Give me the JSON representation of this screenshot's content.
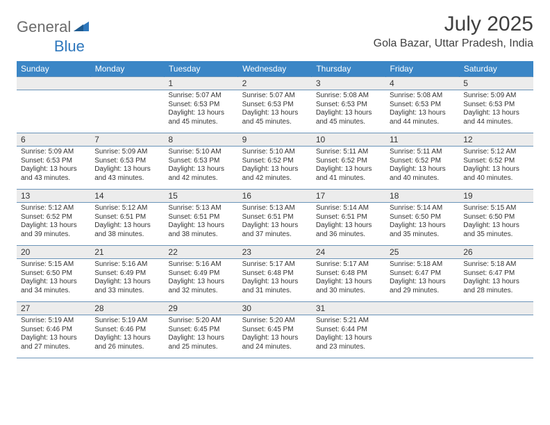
{
  "brand": {
    "text1": "General",
    "text2": "Blue"
  },
  "title": "July 2025",
  "location": "Gola Bazar, Uttar Pradesh, India",
  "colors": {
    "header_bg": "#3b86c6",
    "header_text": "#ffffff",
    "border": "#6a93b8",
    "daynum_bg": "#ececec",
    "text": "#333333",
    "page_bg": "#ffffff",
    "logo_gray": "#6b6b6b",
    "logo_blue": "#2f78bd"
  },
  "day_headers": [
    "Sunday",
    "Monday",
    "Tuesday",
    "Wednesday",
    "Thursday",
    "Friday",
    "Saturday"
  ],
  "weeks": [
    [
      null,
      null,
      {
        "n": "1",
        "sr": "Sunrise: 5:07 AM",
        "ss": "Sunset: 6:53 PM",
        "dl": "Daylight: 13 hours and 45 minutes."
      },
      {
        "n": "2",
        "sr": "Sunrise: 5:07 AM",
        "ss": "Sunset: 6:53 PM",
        "dl": "Daylight: 13 hours and 45 minutes."
      },
      {
        "n": "3",
        "sr": "Sunrise: 5:08 AM",
        "ss": "Sunset: 6:53 PM",
        "dl": "Daylight: 13 hours and 45 minutes."
      },
      {
        "n": "4",
        "sr": "Sunrise: 5:08 AM",
        "ss": "Sunset: 6:53 PM",
        "dl": "Daylight: 13 hours and 44 minutes."
      },
      {
        "n": "5",
        "sr": "Sunrise: 5:09 AM",
        "ss": "Sunset: 6:53 PM",
        "dl": "Daylight: 13 hours and 44 minutes."
      }
    ],
    [
      {
        "n": "6",
        "sr": "Sunrise: 5:09 AM",
        "ss": "Sunset: 6:53 PM",
        "dl": "Daylight: 13 hours and 43 minutes."
      },
      {
        "n": "7",
        "sr": "Sunrise: 5:09 AM",
        "ss": "Sunset: 6:53 PM",
        "dl": "Daylight: 13 hours and 43 minutes."
      },
      {
        "n": "8",
        "sr": "Sunrise: 5:10 AM",
        "ss": "Sunset: 6:53 PM",
        "dl": "Daylight: 13 hours and 42 minutes."
      },
      {
        "n": "9",
        "sr": "Sunrise: 5:10 AM",
        "ss": "Sunset: 6:52 PM",
        "dl": "Daylight: 13 hours and 42 minutes."
      },
      {
        "n": "10",
        "sr": "Sunrise: 5:11 AM",
        "ss": "Sunset: 6:52 PM",
        "dl": "Daylight: 13 hours and 41 minutes."
      },
      {
        "n": "11",
        "sr": "Sunrise: 5:11 AM",
        "ss": "Sunset: 6:52 PM",
        "dl": "Daylight: 13 hours and 40 minutes."
      },
      {
        "n": "12",
        "sr": "Sunrise: 5:12 AM",
        "ss": "Sunset: 6:52 PM",
        "dl": "Daylight: 13 hours and 40 minutes."
      }
    ],
    [
      {
        "n": "13",
        "sr": "Sunrise: 5:12 AM",
        "ss": "Sunset: 6:52 PM",
        "dl": "Daylight: 13 hours and 39 minutes."
      },
      {
        "n": "14",
        "sr": "Sunrise: 5:12 AM",
        "ss": "Sunset: 6:51 PM",
        "dl": "Daylight: 13 hours and 38 minutes."
      },
      {
        "n": "15",
        "sr": "Sunrise: 5:13 AM",
        "ss": "Sunset: 6:51 PM",
        "dl": "Daylight: 13 hours and 38 minutes."
      },
      {
        "n": "16",
        "sr": "Sunrise: 5:13 AM",
        "ss": "Sunset: 6:51 PM",
        "dl": "Daylight: 13 hours and 37 minutes."
      },
      {
        "n": "17",
        "sr": "Sunrise: 5:14 AM",
        "ss": "Sunset: 6:51 PM",
        "dl": "Daylight: 13 hours and 36 minutes."
      },
      {
        "n": "18",
        "sr": "Sunrise: 5:14 AM",
        "ss": "Sunset: 6:50 PM",
        "dl": "Daylight: 13 hours and 35 minutes."
      },
      {
        "n": "19",
        "sr": "Sunrise: 5:15 AM",
        "ss": "Sunset: 6:50 PM",
        "dl": "Daylight: 13 hours and 35 minutes."
      }
    ],
    [
      {
        "n": "20",
        "sr": "Sunrise: 5:15 AM",
        "ss": "Sunset: 6:50 PM",
        "dl": "Daylight: 13 hours and 34 minutes."
      },
      {
        "n": "21",
        "sr": "Sunrise: 5:16 AM",
        "ss": "Sunset: 6:49 PM",
        "dl": "Daylight: 13 hours and 33 minutes."
      },
      {
        "n": "22",
        "sr": "Sunrise: 5:16 AM",
        "ss": "Sunset: 6:49 PM",
        "dl": "Daylight: 13 hours and 32 minutes."
      },
      {
        "n": "23",
        "sr": "Sunrise: 5:17 AM",
        "ss": "Sunset: 6:48 PM",
        "dl": "Daylight: 13 hours and 31 minutes."
      },
      {
        "n": "24",
        "sr": "Sunrise: 5:17 AM",
        "ss": "Sunset: 6:48 PM",
        "dl": "Daylight: 13 hours and 30 minutes."
      },
      {
        "n": "25",
        "sr": "Sunrise: 5:18 AM",
        "ss": "Sunset: 6:47 PM",
        "dl": "Daylight: 13 hours and 29 minutes."
      },
      {
        "n": "26",
        "sr": "Sunrise: 5:18 AM",
        "ss": "Sunset: 6:47 PM",
        "dl": "Daylight: 13 hours and 28 minutes."
      }
    ],
    [
      {
        "n": "27",
        "sr": "Sunrise: 5:19 AM",
        "ss": "Sunset: 6:46 PM",
        "dl": "Daylight: 13 hours and 27 minutes."
      },
      {
        "n": "28",
        "sr": "Sunrise: 5:19 AM",
        "ss": "Sunset: 6:46 PM",
        "dl": "Daylight: 13 hours and 26 minutes."
      },
      {
        "n": "29",
        "sr": "Sunrise: 5:20 AM",
        "ss": "Sunset: 6:45 PM",
        "dl": "Daylight: 13 hours and 25 minutes."
      },
      {
        "n": "30",
        "sr": "Sunrise: 5:20 AM",
        "ss": "Sunset: 6:45 PM",
        "dl": "Daylight: 13 hours and 24 minutes."
      },
      {
        "n": "31",
        "sr": "Sunrise: 5:21 AM",
        "ss": "Sunset: 6:44 PM",
        "dl": "Daylight: 13 hours and 23 minutes."
      },
      null,
      null
    ]
  ]
}
